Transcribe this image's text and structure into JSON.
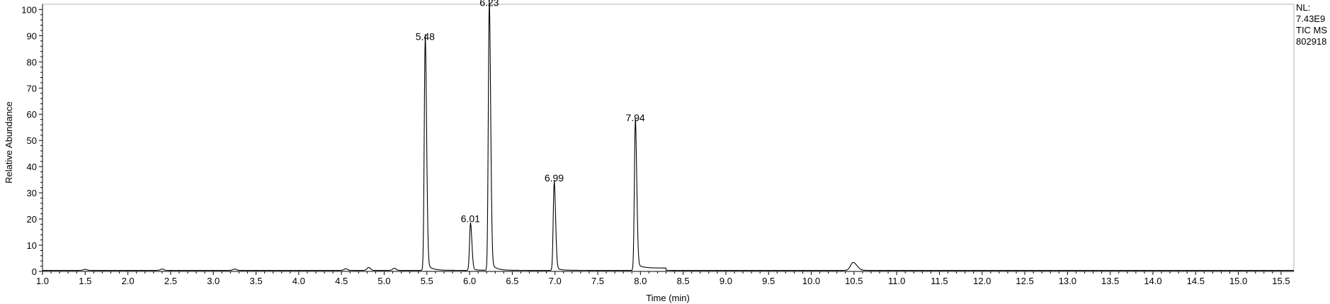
{
  "chart_data": {
    "type": "line",
    "xlabel": "Time (min)",
    "ylabel": "Relative Abundance",
    "xlim": [
      1.0,
      15.65
    ],
    "ylim": [
      0,
      102
    ],
    "x_ticks": [
      1.0,
      1.5,
      2.0,
      2.5,
      3.0,
      3.5,
      4.0,
      4.5,
      5.0,
      5.5,
      6.0,
      6.5,
      7.0,
      7.5,
      8.0,
      8.5,
      9.0,
      9.5,
      10.0,
      10.5,
      11.0,
      11.5,
      12.0,
      12.5,
      13.0,
      13.5,
      14.0,
      14.5,
      15.0,
      15.5
    ],
    "y_ticks": [
      0,
      10,
      20,
      30,
      40,
      50,
      60,
      70,
      80,
      90,
      100
    ],
    "grid": false,
    "series": [
      {
        "baseline": 0.4,
        "peaks": [
          {
            "rt": 5.48,
            "height": 87,
            "label": "5.48"
          },
          {
            "rt": 6.01,
            "height": 17.5,
            "label": "6.01"
          },
          {
            "rt": 6.23,
            "height": 100,
            "label": "6.23"
          },
          {
            "rt": 6.99,
            "height": 33,
            "label": "6.99"
          },
          {
            "rt": 7.94,
            "height": 56,
            "label": "7.94"
          },
          {
            "rt": 10.49,
            "height": 3,
            "label": ""
          }
        ]
      }
    ],
    "annotations": {
      "nl_label": "NL:",
      "nl_value": "7.43E9",
      "trace_type": "TIC  MS",
      "sample_id": "802918"
    }
  }
}
